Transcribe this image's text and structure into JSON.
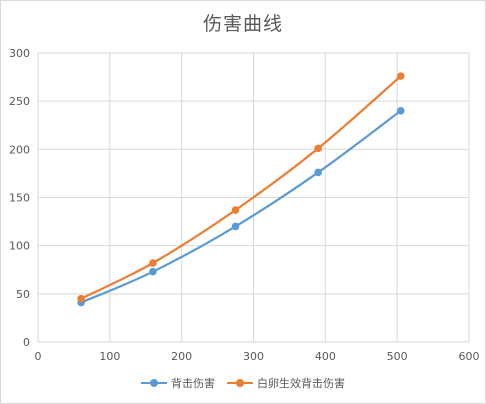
{
  "chart_data": {
    "type": "scatter",
    "title": "伤害曲线",
    "xlabel": "",
    "ylabel": "",
    "xlim": [
      0,
      600
    ],
    "ylim": [
      0,
      300
    ],
    "x_ticks": [
      0,
      100,
      200,
      300,
      400,
      500,
      600
    ],
    "y_ticks": [
      0,
      50,
      100,
      150,
      200,
      250,
      300
    ],
    "grid": true,
    "legend_position": "bottom",
    "smooth": true,
    "series": [
      {
        "name": "背击伤害",
        "color": "#5b9bd5",
        "points": [
          [
            60,
            41
          ],
          [
            160,
            73
          ],
          [
            275,
            120
          ],
          [
            390,
            176
          ],
          [
            505,
            240
          ]
        ]
      },
      {
        "name": "白卵生效背击伤害",
        "color": "#ed7d31",
        "points": [
          [
            60,
            45
          ],
          [
            160,
            82
          ],
          [
            275,
            137
          ],
          [
            390,
            201
          ],
          [
            505,
            276
          ]
        ]
      }
    ]
  }
}
